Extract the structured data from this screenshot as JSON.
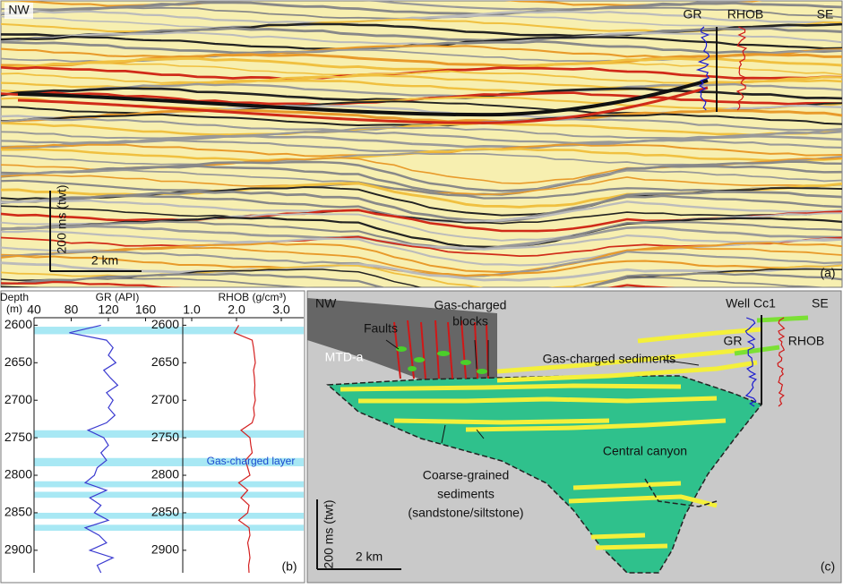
{
  "panel_a": {
    "left": "NW",
    "right": "SE",
    "logs": [
      "GR",
      "RHOB"
    ],
    "scale_v": "200 ms (twt)",
    "scale_h": "2 km",
    "panel_label": "(a)"
  },
  "chart_data": [
    {
      "type": "line",
      "x_title": "GR (API)",
      "y_title": [
        "Depth",
        "(m)"
      ],
      "xlim": [
        40,
        200
      ],
      "xticks": [
        40,
        80,
        120,
        160
      ],
      "ylim": [
        2590,
        2930
      ],
      "yticks": [
        2600,
        2650,
        2700,
        2750,
        2800,
        2850,
        2900
      ],
      "depth": [
        2600,
        2610,
        2620,
        2630,
        2640,
        2650,
        2660,
        2670,
        2680,
        2690,
        2700,
        2710,
        2720,
        2730,
        2740,
        2750,
        2760,
        2770,
        2780,
        2790,
        2800,
        2810,
        2820,
        2830,
        2840,
        2850,
        2860,
        2870,
        2880,
        2890,
        2900,
        2910,
        2920,
        2930
      ],
      "series": [
        {
          "color": "#3b3bd0",
          "values": [
            112,
            78,
            118,
            125,
            120,
            128,
            115,
            122,
            130,
            118,
            125,
            120,
            127,
            118,
            98,
            115,
            120,
            112,
            118,
            108,
            105,
            95,
            118,
            100,
            112,
            105,
            120,
            95,
            110,
            118,
            100,
            125,
            108,
            112
          ]
        }
      ],
      "gas_layers": [
        [
          2602,
          2612
        ],
        [
          2740,
          2750
        ],
        [
          2777,
          2788
        ],
        [
          2808,
          2816
        ],
        [
          2822,
          2830
        ],
        [
          2850,
          2858
        ],
        [
          2866,
          2874
        ]
      ],
      "annotation": "Gas-charged layer"
    },
    {
      "type": "line",
      "x_title": "RHOB (g/cm³)",
      "xlim": [
        0.8,
        3.5
      ],
      "xticks": [
        {
          "value": 1,
          "label": "1.0"
        },
        {
          "value": 2,
          "label": "2.0"
        },
        {
          "value": 3,
          "label": "3.0"
        }
      ],
      "ylim": [
        2590,
        2930
      ],
      "yticks": [
        2600,
        2650,
        2700,
        2750,
        2800,
        2850,
        2900
      ],
      "depth": [
        2600,
        2610,
        2620,
        2630,
        2640,
        2650,
        2660,
        2670,
        2680,
        2690,
        2700,
        2710,
        2720,
        2730,
        2740,
        2750,
        2760,
        2770,
        2780,
        2790,
        2800,
        2810,
        2820,
        2830,
        2840,
        2850,
        2860,
        2870,
        2880,
        2890,
        2900,
        2910,
        2920,
        2930
      ],
      "series": [
        {
          "color": "#d42020",
          "values": [
            2.05,
            1.95,
            2.35,
            2.38,
            2.4,
            2.42,
            2.38,
            2.4,
            2.41,
            2.4,
            2.42,
            2.38,
            2.4,
            2.35,
            2.1,
            2.3,
            2.32,
            2.35,
            2.2,
            2.25,
            2.3,
            2.05,
            2.25,
            2.1,
            2.28,
            2.25,
            2.05,
            2.28,
            2.3,
            2.25,
            2.28,
            2.3,
            2.27,
            2.28
          ]
        }
      ],
      "panel_label": "(b)"
    }
  ],
  "panel_c": {
    "left": "NW",
    "right": "SE",
    "well": "Well Cc1",
    "logs": [
      "GR",
      "RHOB"
    ],
    "faults": "Faults",
    "gas_blocks": [
      "Gas-charged",
      "blocks"
    ],
    "mtd": "MTD-a",
    "gas_sediments": "Gas-charged sediments",
    "canyon": "Central canyon",
    "coarse": [
      "Coarse-grained",
      "sediments",
      "(sandstone/siltstone)"
    ],
    "scale_v": "200 ms (twt)",
    "scale_h": "2 km",
    "panel_label": "(c)"
  }
}
